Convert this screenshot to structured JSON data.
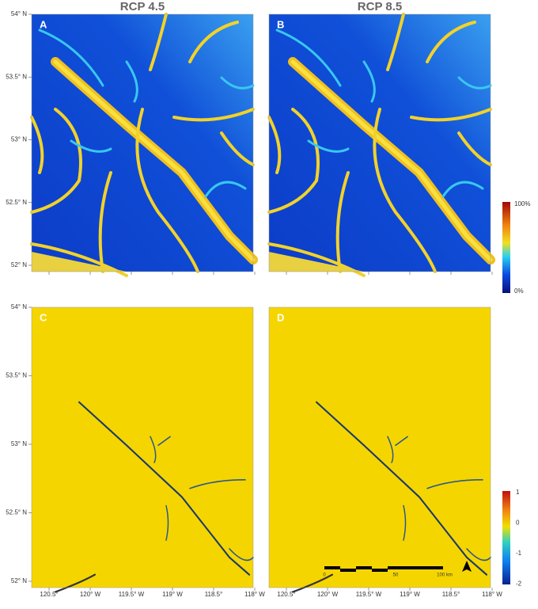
{
  "titles": [
    "RCP 4.5",
    "RCP 8.5"
  ],
  "panel_labels": [
    "A",
    "B",
    "C",
    "D"
  ],
  "lat_labels": [
    "54° N",
    "53.5° N",
    "53° N",
    "52.5° N",
    "52° N"
  ],
  "lon_labels": [
    "120.5°",
    "120° W",
    "119.5° W",
    "119° W",
    "118.5°",
    "118° W"
  ],
  "colorbar_top": {
    "max": "100%",
    "min": "0%"
  },
  "colorbar_bottom": [
    "1",
    "0",
    "-1",
    "-2"
  ],
  "scale_bar": [
    "0",
    "50",
    "100 km"
  ]
}
